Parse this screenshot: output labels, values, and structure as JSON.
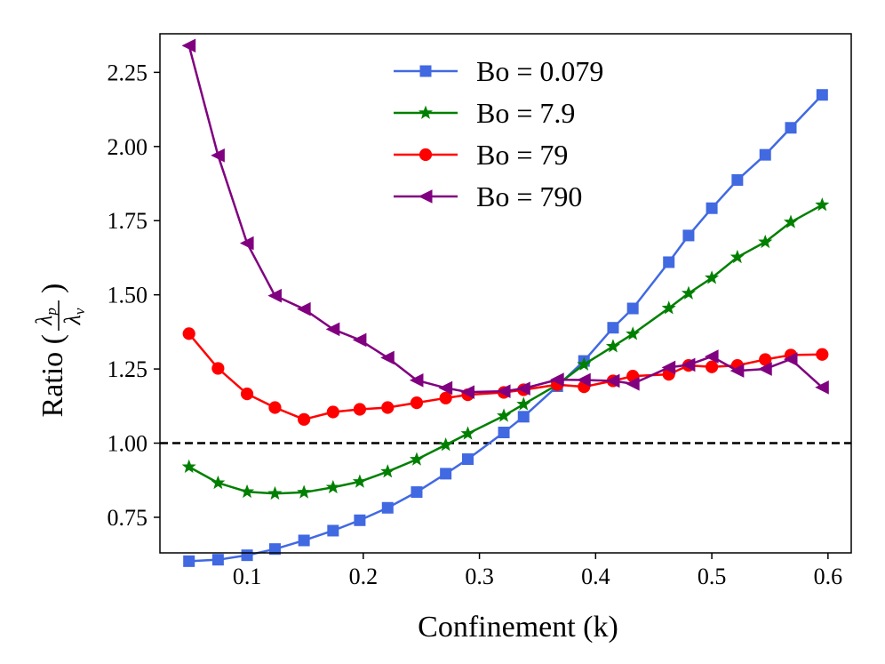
{
  "chart_data": {
    "type": "line",
    "title": "",
    "xlabel": "Confinement (k)",
    "ylabel": {
      "prefix": "Ratio (",
      "numerator": "λ",
      "numerator_sub": "p",
      "denominator": "λ",
      "denominator_sub": "v",
      "suffix": ")"
    },
    "xlim": [
      0.025,
      0.62
    ],
    "ylim": [
      0.63,
      2.38
    ],
    "xticks": [
      0.1,
      0.2,
      0.3,
      0.4,
      0.5,
      0.6
    ],
    "xtick_labels": [
      "0.1",
      "0.2",
      "0.3",
      "0.4",
      "0.5",
      "0.6"
    ],
    "yticks": [
      0.75,
      1.0,
      1.25,
      1.5,
      1.75,
      2.0,
      2.25
    ],
    "ytick_labels": [
      "0.75",
      "1.00",
      "1.25",
      "1.50",
      "1.75",
      "2.00",
      "2.25"
    ],
    "reference_line": {
      "y": 1.0,
      "style": "dashed",
      "color": "#000000"
    },
    "legend_position": "top-center",
    "series": [
      {
        "name": "Bo = 0.079",
        "color": "#4169e1",
        "marker": "square",
        "x": [
          0.05,
          0.075,
          0.1,
          0.124,
          0.149,
          0.174,
          0.197,
          0.221,
          0.246,
          0.271,
          0.29,
          0.321,
          0.338,
          0.367,
          0.39,
          0.415,
          0.432,
          0.463,
          0.48,
          0.5,
          0.522,
          0.546,
          0.568,
          0.595
        ],
        "y": [
          0.602,
          0.607,
          0.622,
          0.643,
          0.672,
          0.705,
          0.74,
          0.782,
          0.835,
          0.897,
          0.946,
          1.036,
          1.089,
          1.192,
          1.277,
          1.389,
          1.454,
          1.61,
          1.7,
          1.792,
          1.887,
          1.972,
          2.063,
          2.174
        ]
      },
      {
        "name": "Bo = 7.9",
        "color": "#008000",
        "marker": "star",
        "x": [
          0.05,
          0.075,
          0.1,
          0.124,
          0.149,
          0.174,
          0.197,
          0.221,
          0.246,
          0.271,
          0.29,
          0.321,
          0.338,
          0.367,
          0.39,
          0.415,
          0.432,
          0.463,
          0.48,
          0.5,
          0.522,
          0.546,
          0.568,
          0.595
        ],
        "y": [
          0.92,
          0.866,
          0.836,
          0.83,
          0.834,
          0.851,
          0.87,
          0.904,
          0.945,
          0.994,
          1.032,
          1.092,
          1.131,
          1.197,
          1.265,
          1.326,
          1.368,
          1.455,
          1.505,
          1.557,
          1.627,
          1.678,
          1.745,
          1.803
        ]
      },
      {
        "name": "Bo = 79",
        "color": "#ff0000",
        "marker": "circle",
        "x": [
          0.05,
          0.075,
          0.1,
          0.124,
          0.149,
          0.174,
          0.197,
          0.221,
          0.246,
          0.271,
          0.29,
          0.321,
          0.338,
          0.367,
          0.39,
          0.415,
          0.432,
          0.463,
          0.48,
          0.5,
          0.522,
          0.546,
          0.568,
          0.595
        ],
        "y": [
          1.369,
          1.252,
          1.166,
          1.12,
          1.08,
          1.105,
          1.114,
          1.12,
          1.136,
          1.152,
          1.163,
          1.171,
          1.18,
          1.197,
          1.19,
          1.21,
          1.226,
          1.232,
          1.262,
          1.257,
          1.262,
          1.282,
          1.297,
          1.299
        ]
      },
      {
        "name": "Bo = 790",
        "color": "#800080",
        "marker": "triangle-left",
        "x": [
          0.05,
          0.075,
          0.1,
          0.124,
          0.149,
          0.174,
          0.197,
          0.221,
          0.246,
          0.271,
          0.29,
          0.321,
          0.338,
          0.367,
          0.39,
          0.415,
          0.432,
          0.463,
          0.48,
          0.5,
          0.522,
          0.546,
          0.568,
          0.595
        ],
        "y": [
          2.34,
          1.97,
          1.674,
          1.497,
          1.452,
          1.384,
          1.348,
          1.288,
          1.212,
          1.186,
          1.172,
          1.175,
          1.184,
          1.214,
          1.213,
          1.21,
          1.2,
          1.255,
          1.264,
          1.292,
          1.244,
          1.25,
          1.283,
          1.188
        ]
      }
    ]
  }
}
